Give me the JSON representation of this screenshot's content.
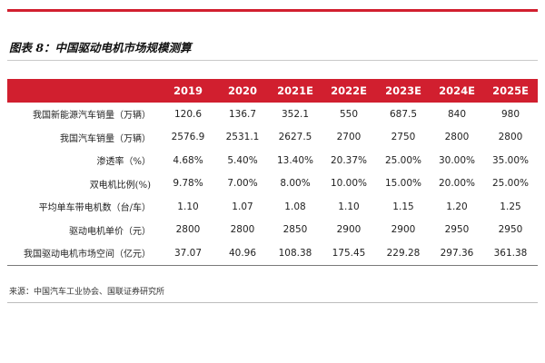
{
  "figure": {
    "caption": "图表 8：中国驱动电机市场规模测算"
  },
  "table": {
    "headers": [
      "",
      "2019",
      "2020",
      "2021E",
      "2022E",
      "2023E",
      "2024E",
      "2025E"
    ],
    "rows": [
      {
        "label": "我国新能源汽车销量（万辆）",
        "values": [
          "120.6",
          "136.7",
          "352.1",
          "550",
          "687.5",
          "840",
          "980"
        ]
      },
      {
        "label": "我国汽车销量（万辆）",
        "values": [
          "2576.9",
          "2531.1",
          "2627.5",
          "2700",
          "2750",
          "2800",
          "2800"
        ]
      },
      {
        "label": "渗透率（%）",
        "values": [
          "4.68%",
          "5.40%",
          "13.40%",
          "20.37%",
          "25.00%",
          "30.00%",
          "35.00%"
        ]
      },
      {
        "label": "双电机比例(%)",
        "values": [
          "9.78%",
          "7.00%",
          "8.00%",
          "10.00%",
          "15.00%",
          "20.00%",
          "25.00%"
        ]
      },
      {
        "label": "平均单车带电机数（台/车）",
        "values": [
          "1.10",
          "1.07",
          "1.08",
          "1.10",
          "1.15",
          "1.20",
          "1.25"
        ]
      },
      {
        "label": "驱动电机单价（元）",
        "values": [
          "2800",
          "2800",
          "2850",
          "2900",
          "2900",
          "2950",
          "2950"
        ]
      },
      {
        "label": "我国驱动电机市场空间（亿元）",
        "values": [
          "37.07",
          "40.96",
          "108.38",
          "175.45",
          "229.28",
          "297.36",
          "361.38"
        ]
      }
    ]
  },
  "source": "来源：中国汽车工业协会、国联证券研究所",
  "colors": {
    "accent": "#d11f2f",
    "header_text": "#ffffff"
  }
}
